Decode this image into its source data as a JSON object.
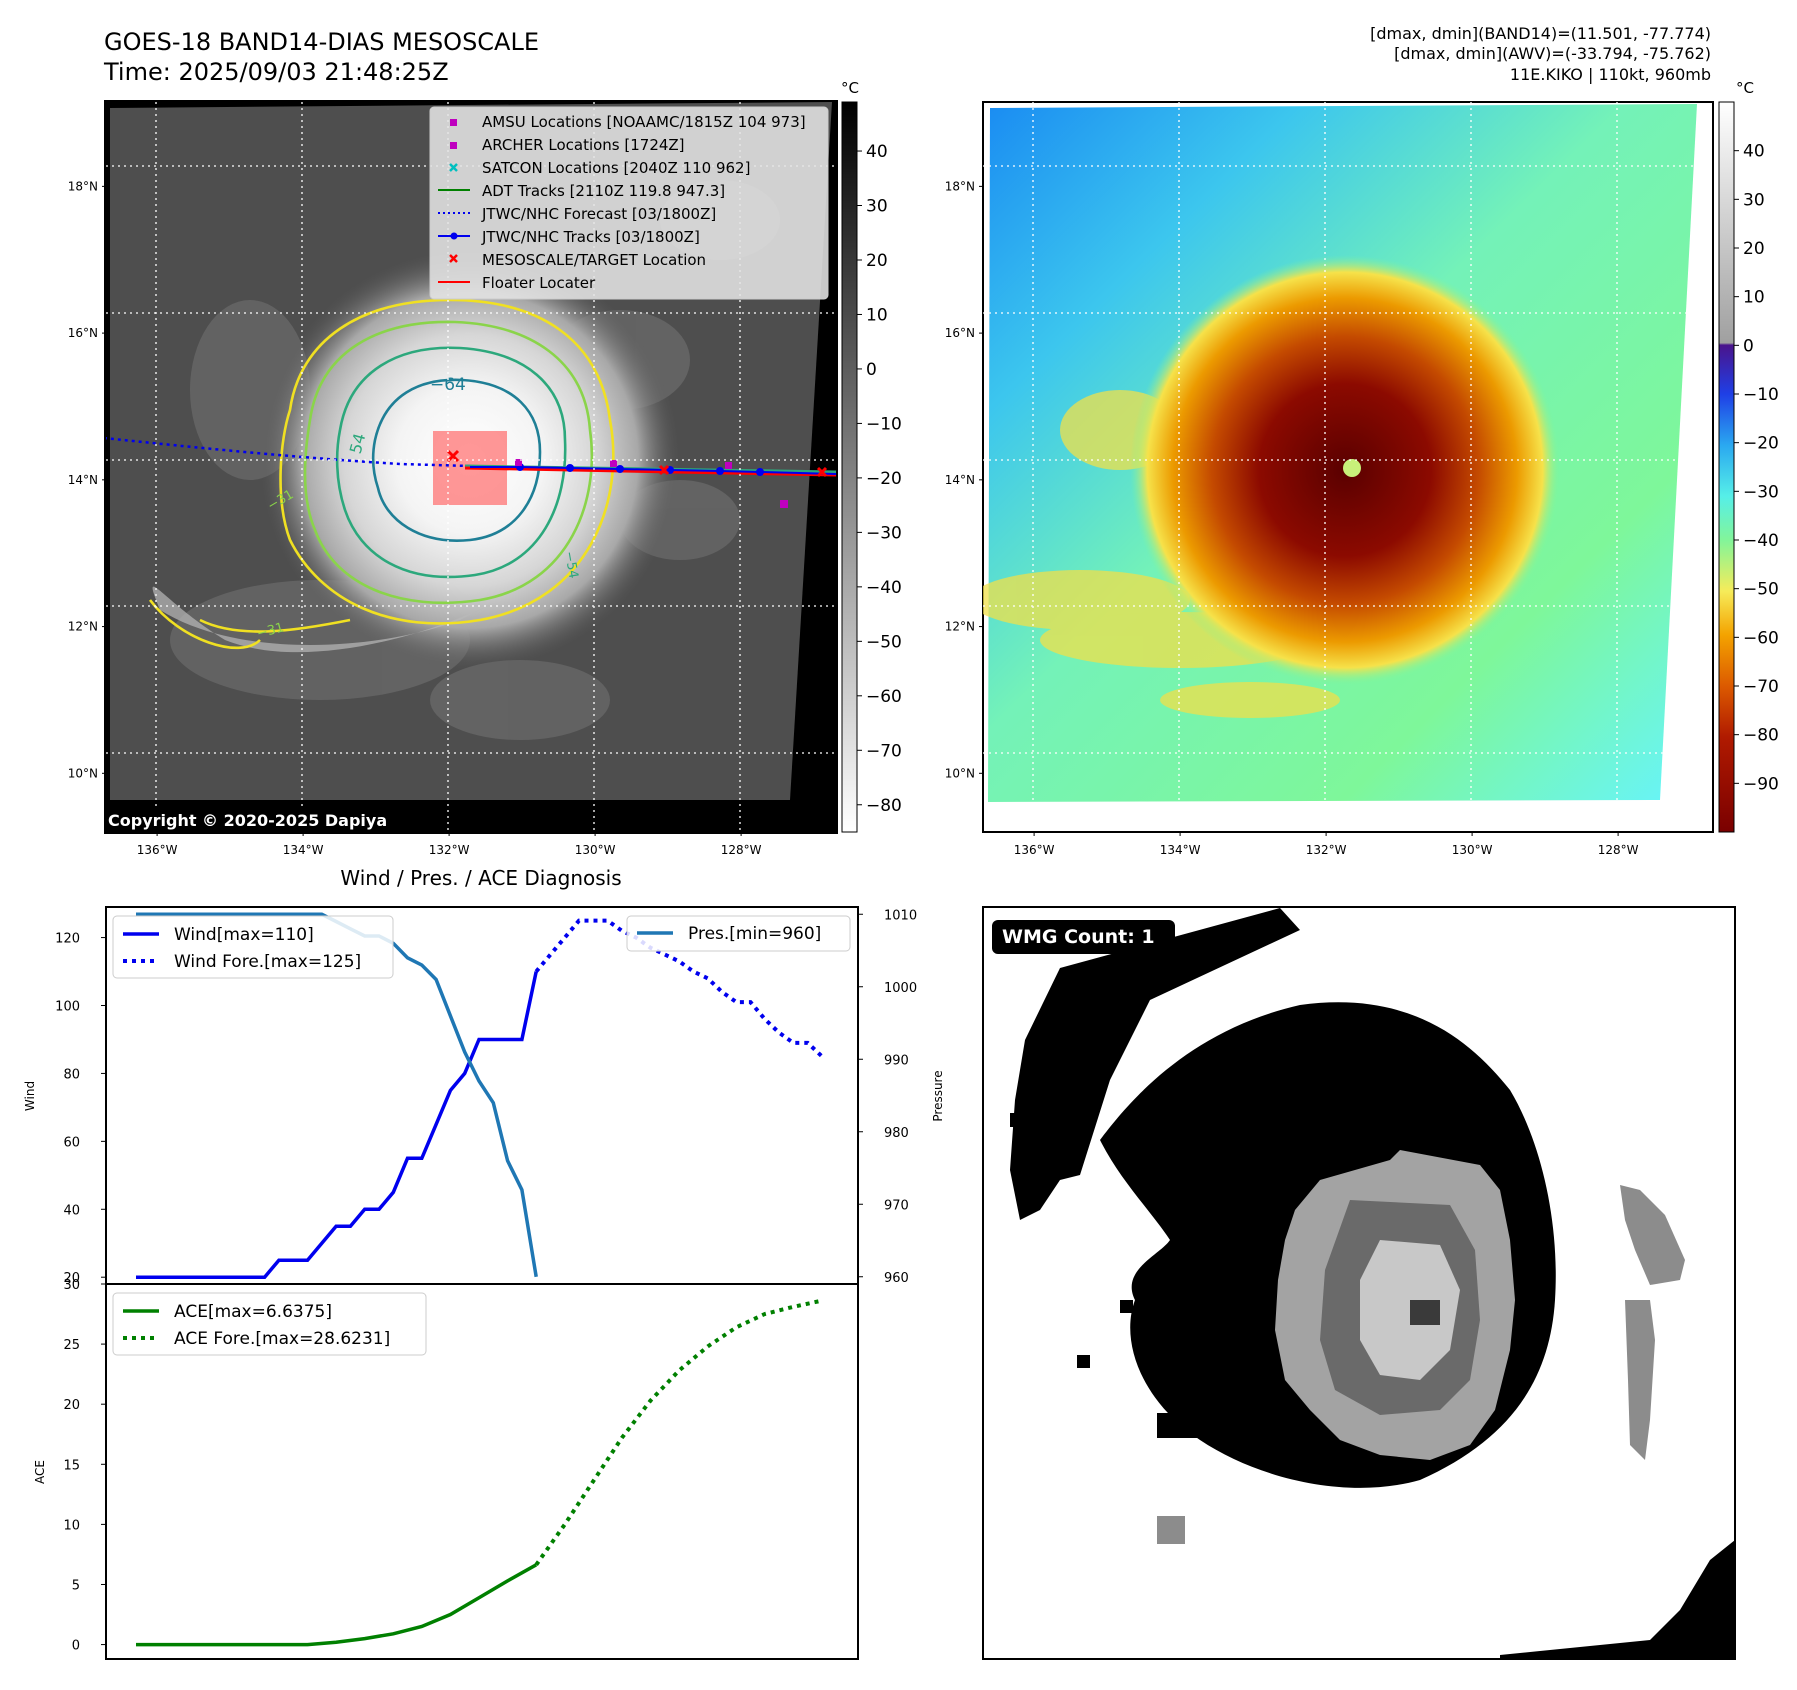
{
  "header": {
    "title": "GOES-18 BAND14-DIAS MESOSCALE",
    "time": "Time: 2025/09/03 21:48:25Z",
    "info": [
      "[dmax, dmin](BAND14)=(11.501, -77.774)",
      "[dmax, dmin](AWV)=(-33.794, -75.762)",
      "11E.KIKO | 110kt, 960mb"
    ]
  },
  "map_axes": {
    "lat_labels": [
      "18°N",
      "16°N",
      "14°N",
      "12°N",
      "10°N"
    ],
    "lat_values": [
      18,
      16,
      14,
      12,
      10
    ],
    "lon_labels": [
      "136°W",
      "134°W",
      "132°W",
      "130°W",
      "128°W"
    ],
    "lon_values": [
      -136,
      -134,
      -132,
      -130,
      -128
    ],
    "lon_range": [
      -136.7,
      -126.7
    ],
    "lat_range": [
      9.2,
      19.15
    ]
  },
  "ir_panel": {
    "colorbar_unit": "°C",
    "colorbar_ticks": [
      "40",
      "30",
      "20",
      "10",
      "0",
      "−10",
      "−20",
      "−30",
      "−40",
      "−50",
      "−60",
      "−70",
      "−80"
    ],
    "colorbar_values": [
      40,
      30,
      20,
      10,
      0,
      -10,
      -20,
      -30,
      -40,
      -50,
      -60,
      -70,
      -80
    ],
    "colorbar_range": [
      -85,
      49
    ],
    "contour_labels": [
      "−64",
      "54",
      "−31",
      "−31",
      "−54"
    ],
    "copyright": "Copyright © 2020-2025 Dapiya",
    "legend": [
      {
        "label": "AMSU Locations [NOAAMC/1815Z 104 973]",
        "symbol": "square",
        "color": "#bf00bf"
      },
      {
        "label": "ARCHER Locations [1724Z]",
        "symbol": "square",
        "color": "#bf00bf"
      },
      {
        "label": "SATCON Locations [2040Z 110 962]",
        "symbol": "x",
        "color": "#00bfbf"
      },
      {
        "label": "ADT Tracks [2110Z 119.8 947.3]",
        "symbol": "line",
        "color": "#008000"
      },
      {
        "label": "JTWC/NHC Forecast [03/1800Z]",
        "symbol": "dotted",
        "color": "#0000ff"
      },
      {
        "label": "JTWC/NHC Tracks [03/1800Z]",
        "symbol": "line-dot",
        "color": "#0000ff"
      },
      {
        "label": "MESOSCALE/TARGET Location",
        "symbol": "x",
        "color": "#ff0000"
      },
      {
        "label": "Floater Locater",
        "symbol": "line",
        "color": "#ff0000"
      }
    ]
  },
  "awv_panel": {
    "colorbar_unit": "°C",
    "colorbar_ticks": [
      "40",
      "30",
      "20",
      "10",
      "0",
      "−10",
      "−20",
      "−30",
      "−40",
      "−50",
      "−60",
      "−70",
      "−80",
      "−90"
    ],
    "colorbar_values": [
      40,
      30,
      20,
      10,
      0,
      -10,
      -20,
      -30,
      -40,
      -50,
      -60,
      -70,
      -80,
      -90
    ],
    "colorbar_range": [
      -100,
      50
    ]
  },
  "wmg_panel": {
    "badge": "WMG Count: 1"
  },
  "chart_data": [
    {
      "type": "line",
      "title": "Wind / Pres. / ACE Diagnosis",
      "ylabel": "Wind",
      "y2label": "Pressure",
      "ylim": [
        18,
        129
      ],
      "y2lim": [
        959,
        1011
      ],
      "yticks": [
        20,
        40,
        60,
        80,
        100,
        120
      ],
      "y2ticks": [
        960,
        970,
        980,
        990,
        1000,
        1010
      ],
      "x": [
        0,
        1,
        2,
        3,
        4,
        5,
        6,
        7,
        8,
        9,
        10,
        11,
        12,
        13,
        14,
        15,
        16,
        17,
        18,
        19,
        20,
        21,
        22,
        23,
        24,
        25,
        26,
        27,
        28,
        29,
        30,
        31,
        32,
        33,
        34,
        35,
        36,
        37,
        38,
        39,
        40,
        41,
        42,
        43,
        44,
        45,
        46,
        47,
        48
      ],
      "series": [
        {
          "name": "Wind[max=110]",
          "axis": "left",
          "style": "solid",
          "color": "#0000ee",
          "x": [
            0,
            1,
            2,
            3,
            4,
            5,
            6,
            7,
            8,
            9,
            10,
            11,
            12,
            13,
            14,
            15,
            16,
            17,
            18,
            19,
            20,
            21,
            22,
            23,
            24,
            25,
            26,
            27,
            28
          ],
          "values": [
            20,
            20,
            20,
            20,
            20,
            20,
            20,
            20,
            20,
            20,
            25,
            25,
            25,
            30,
            35,
            35,
            40,
            40,
            45,
            55,
            55,
            65,
            75,
            80,
            90,
            90,
            90,
            90,
            110
          ]
        },
        {
          "name": "Wind Fore.[max=125]",
          "axis": "left",
          "style": "dotted",
          "color": "#0000ee",
          "x": [
            28,
            29,
            30,
            31,
            32,
            33,
            34,
            35,
            36,
            37,
            38,
            39,
            40,
            41,
            42,
            43,
            44,
            45,
            46,
            47,
            48
          ],
          "values": [
            110,
            115,
            120,
            125,
            125,
            125,
            122,
            120,
            117,
            115,
            113,
            110,
            108,
            104,
            101,
            101,
            96,
            92,
            89,
            89,
            85
          ]
        },
        {
          "name": "Pres.[min=960]",
          "axis": "right",
          "style": "solid",
          "color": "#1f77b4",
          "x": [
            0,
            1,
            2,
            3,
            4,
            5,
            6,
            7,
            8,
            9,
            10,
            11,
            12,
            13,
            14,
            15,
            16,
            17,
            18,
            19,
            20,
            21,
            22,
            23,
            24,
            25,
            26,
            27,
            28
          ],
          "values": [
            1010,
            1010,
            1010,
            1010,
            1010,
            1010,
            1010,
            1010,
            1010,
            1010,
            1010,
            1010,
            1010,
            1010,
            1009,
            1008,
            1007,
            1007,
            1006,
            1004,
            1003,
            1001,
            996,
            991,
            987,
            984,
            976,
            972,
            960
          ]
        }
      ]
    },
    {
      "type": "line",
      "ylabel": "ACE",
      "ylim": [
        -1.2,
        30
      ],
      "yticks": [
        0,
        5,
        10,
        15,
        20,
        25,
        30
      ],
      "series": [
        {
          "name": "ACE[max=6.6375]",
          "style": "solid",
          "color": "#008000",
          "x": [
            0,
            2,
            4,
            6,
            8,
            10,
            12,
            14,
            16,
            18,
            20,
            22,
            24,
            26,
            28
          ],
          "values": [
            0,
            0,
            0,
            0,
            0,
            0,
            0,
            0.2,
            0.5,
            0.9,
            1.5,
            2.5,
            3.9,
            5.3,
            6.64
          ]
        },
        {
          "name": "ACE Fore.[max=28.6231]",
          "style": "dotted",
          "color": "#008000",
          "x": [
            28,
            30,
            32,
            34,
            36,
            38,
            40,
            42,
            44,
            46,
            48
          ],
          "values": [
            6.64,
            10.0,
            13.6,
            17.2,
            20.3,
            22.8,
            24.8,
            26.4,
            27.5,
            28.1,
            28.62
          ]
        }
      ]
    }
  ]
}
